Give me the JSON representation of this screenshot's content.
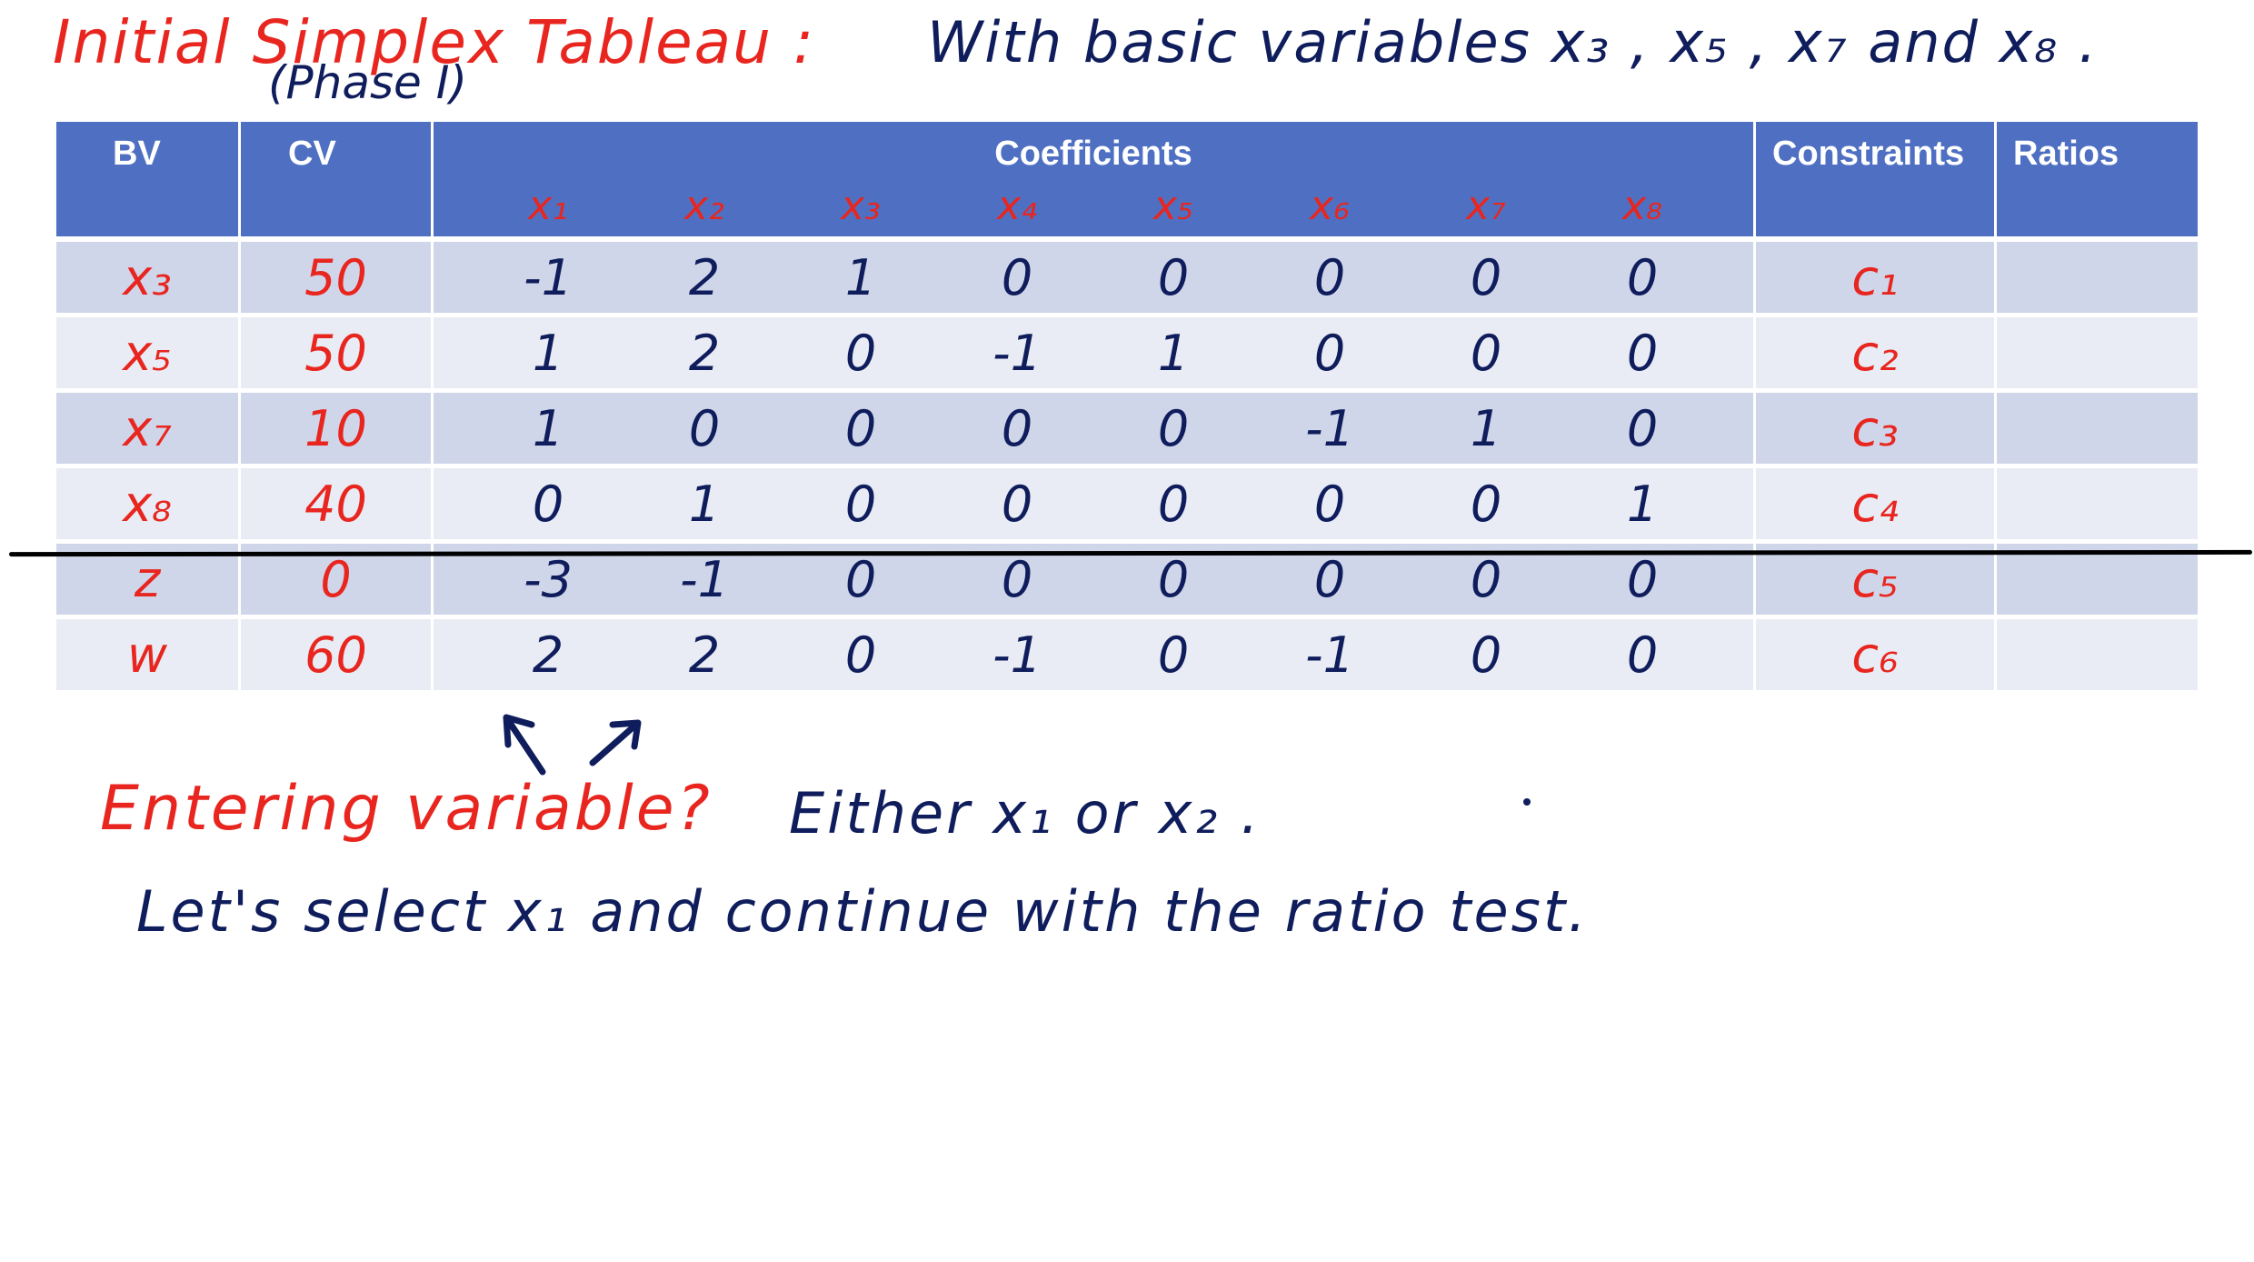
{
  "title": {
    "main": "Initial Simplex Tableau :",
    "phase": "(Phase I)",
    "basis_note": "With basic variables x₃ , x₅ , x₇ and x₈ ."
  },
  "tableau": {
    "headers": {
      "bv": "BV",
      "cv": "CV",
      "coefficients": "Coefficients",
      "constraints": "Constraints",
      "ratios": "Ratios"
    },
    "variables": [
      "x₁",
      "x₂",
      "x₃",
      "x₄",
      "x₅",
      "x₆",
      "x₇",
      "x₈"
    ],
    "rows": [
      {
        "bv": "x₃",
        "cv": "50",
        "coefs": [
          "-1",
          "2",
          "1",
          "0",
          "0",
          "0",
          "0",
          "0"
        ],
        "constraint": "c₁",
        "ratio": ""
      },
      {
        "bv": "x₅",
        "cv": "50",
        "coefs": [
          "1",
          "2",
          "0",
          "-1",
          "1",
          "0",
          "0",
          "0"
        ],
        "constraint": "c₂",
        "ratio": ""
      },
      {
        "bv": "x₇",
        "cv": "10",
        "coefs": [
          "1",
          "0",
          "0",
          "0",
          "0",
          "-1",
          "1",
          "0"
        ],
        "constraint": "c₃",
        "ratio": ""
      },
      {
        "bv": "x₈",
        "cv": "40",
        "coefs": [
          "0",
          "1",
          "0",
          "0",
          "0",
          "0",
          "0",
          "1"
        ],
        "constraint": "c₄",
        "ratio": ""
      },
      {
        "bv": "z",
        "cv": "0",
        "coefs": [
          "-3",
          "-1",
          "0",
          "0",
          "0",
          "0",
          "0",
          "0"
        ],
        "constraint": "c₅",
        "ratio": ""
      },
      {
        "bv": "w",
        "cv": "60",
        "coefs": [
          "2",
          "2",
          "0",
          "-1",
          "0",
          "-1",
          "0",
          "0"
        ],
        "constraint": "c₆",
        "ratio": ""
      }
    ]
  },
  "notes": {
    "question": "Entering variable?",
    "answer": "Either x₁ or x₂ .",
    "selection": "Let's select x₁ and continue with the ratio test."
  },
  "colors": {
    "header_blue": "#4f70c2",
    "row_dark": "#d0d6ea",
    "row_light": "#e9ecf4",
    "ink_red": "#e8261f",
    "ink_navy": "#0f1d5c"
  },
  "icons": {
    "pointer_arrows": "arrow-up-icon"
  }
}
